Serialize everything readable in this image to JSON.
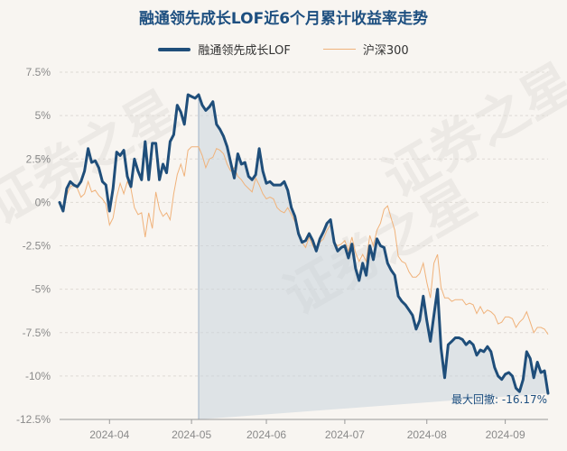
{
  "chart_data": {
    "type": "line",
    "title": "融通领先成长LOF近6个月累计收益率走势",
    "watermark": "证券之星",
    "series": [
      {
        "name": "融通领先成长LOF",
        "color": "#1f4e7a",
        "values": [
          0.0,
          -0.5,
          0.8,
          1.2,
          1.0,
          0.9,
          1.2,
          1.8,
          3.1,
          2.3,
          2.4,
          2.0,
          1.2,
          1.0,
          -0.5,
          0.8,
          2.9,
          2.7,
          3.0,
          1.5,
          0.9,
          2.5,
          1.8,
          1.3,
          3.5,
          1.3,
          3.4,
          3.4,
          1.3,
          2.2,
          1.7,
          3.5,
          3.9,
          5.6,
          5.2,
          4.5,
          6.2,
          6.1,
          6.0,
          6.2,
          5.6,
          5.3,
          5.5,
          5.8,
          4.5,
          4.2,
          3.8,
          3.2,
          2.3,
          1.4,
          2.8,
          2.2,
          2.3,
          1.5,
          1.3,
          1.6,
          3.1,
          1.8,
          1.1,
          1.2,
          1.0,
          1.0,
          1.0,
          1.2,
          0.7,
          -0.3,
          -0.8,
          -1.8,
          -2.3,
          -2.2,
          -1.8,
          -2.2,
          -2.8,
          -2.1,
          -1.7,
          -1.2,
          -1.0,
          -2.3,
          -2.8,
          -2.6,
          -2.5,
          -3.2,
          -2.4,
          -3.8,
          -4.5,
          -3.5,
          -4.2,
          -2.5,
          -3.3,
          -2.1,
          -2.5,
          -2.6,
          -3.5,
          -3.9,
          -4.2,
          -5.4,
          -5.7,
          -5.9,
          -6.2,
          -6.5,
          -7.3,
          -6.8,
          -5.4,
          -6.8,
          -8.0,
          -6.5,
          -5.0,
          -8.4,
          -10.1,
          -8.2,
          -8.0,
          -7.8,
          -7.8,
          -7.9,
          -8.2,
          -8.0,
          -8.2,
          -8.8,
          -8.5,
          -8.6,
          -8.3,
          -8.6,
          -9.5,
          -10.0,
          -10.2,
          -9.9,
          -9.8,
          -10.0,
          -10.7,
          -10.9,
          -10.2,
          -8.6,
          -9.0,
          -10.1,
          -9.2,
          -9.8,
          -9.7,
          -11.0
        ]
      },
      {
        "name": "沪深300",
        "color": "#f0b27a",
        "values": [
          0.0,
          -0.5,
          0.4,
          0.9,
          1.0,
          0.8,
          0.3,
          0.5,
          1.2,
          0.6,
          0.7,
          0.4,
          0.2,
          -0.1,
          -1.3,
          -0.9,
          0.3,
          1.1,
          0.5,
          1.2,
          0.8,
          -0.3,
          -0.7,
          -0.6,
          -2.0,
          -0.6,
          -1.5,
          0.6,
          -0.4,
          -0.8,
          -0.6,
          -1.0,
          0.5,
          1.6,
          2.2,
          1.5,
          3.0,
          3.2,
          3.2,
          3.2,
          2.7,
          2.0,
          2.5,
          2.6,
          3.1,
          3.0,
          2.8,
          2.2,
          1.8,
          2.0,
          1.5,
          1.3,
          1.0,
          0.8,
          0.6,
          1.4,
          1.0,
          0.5,
          0.2,
          0.3,
          0.2,
          -0.3,
          -0.5,
          -0.6,
          -0.3,
          -0.7,
          -1.1,
          -1.6,
          -2.3,
          -2.6,
          -2.0,
          -2.5,
          -2.8,
          -2.3,
          -2.1,
          -1.6,
          -1.3,
          -2.3,
          -2.5,
          -2.4,
          -2.2,
          -2.8,
          -2.0,
          -2.9,
          -3.4,
          -3.0,
          -3.4,
          -1.9,
          -2.5,
          -1.6,
          -1.2,
          -0.4,
          -0.2,
          -0.9,
          -1.6,
          -3.1,
          -3.4,
          -3.5,
          -4.0,
          -4.3,
          -4.3,
          -4.1,
          -3.5,
          -4.6,
          -5.5,
          -3.5,
          -3.0,
          -4.9,
          -5.5,
          -5.5,
          -5.7,
          -5.6,
          -5.6,
          -5.6,
          -5.9,
          -5.8,
          -5.9,
          -6.4,
          -6.0,
          -6.4,
          -6.2,
          -6.3,
          -6.5,
          -7.0,
          -6.9,
          -6.6,
          -6.6,
          -6.7,
          -7.2,
          -6.9,
          -6.7,
          -6.3,
          -6.9,
          -7.5,
          -7.2,
          -7.2,
          -7.3,
          -7.6
        ]
      }
    ],
    "x_tick_labels": [
      "2024-04",
      "2024-05",
      "2024-06",
      "2024-07",
      "2024-08",
      "2024-09"
    ],
    "y_tick_labels": [
      "7.5%",
      "5%",
      "2.5%",
      "0%",
      "-2.5%",
      "-5%",
      "-7.5%",
      "-10%",
      "-12.5%"
    ],
    "y_tick_values": [
      7.5,
      5,
      2.5,
      0,
      -2.5,
      -5,
      -7.5,
      -10,
      -12.5
    ],
    "ylim": [
      -12.5,
      7.5
    ],
    "max_drawdown": {
      "label": "最大回撤",
      "value": "-16.17%",
      "start_index": 39,
      "end_index": 140
    }
  }
}
